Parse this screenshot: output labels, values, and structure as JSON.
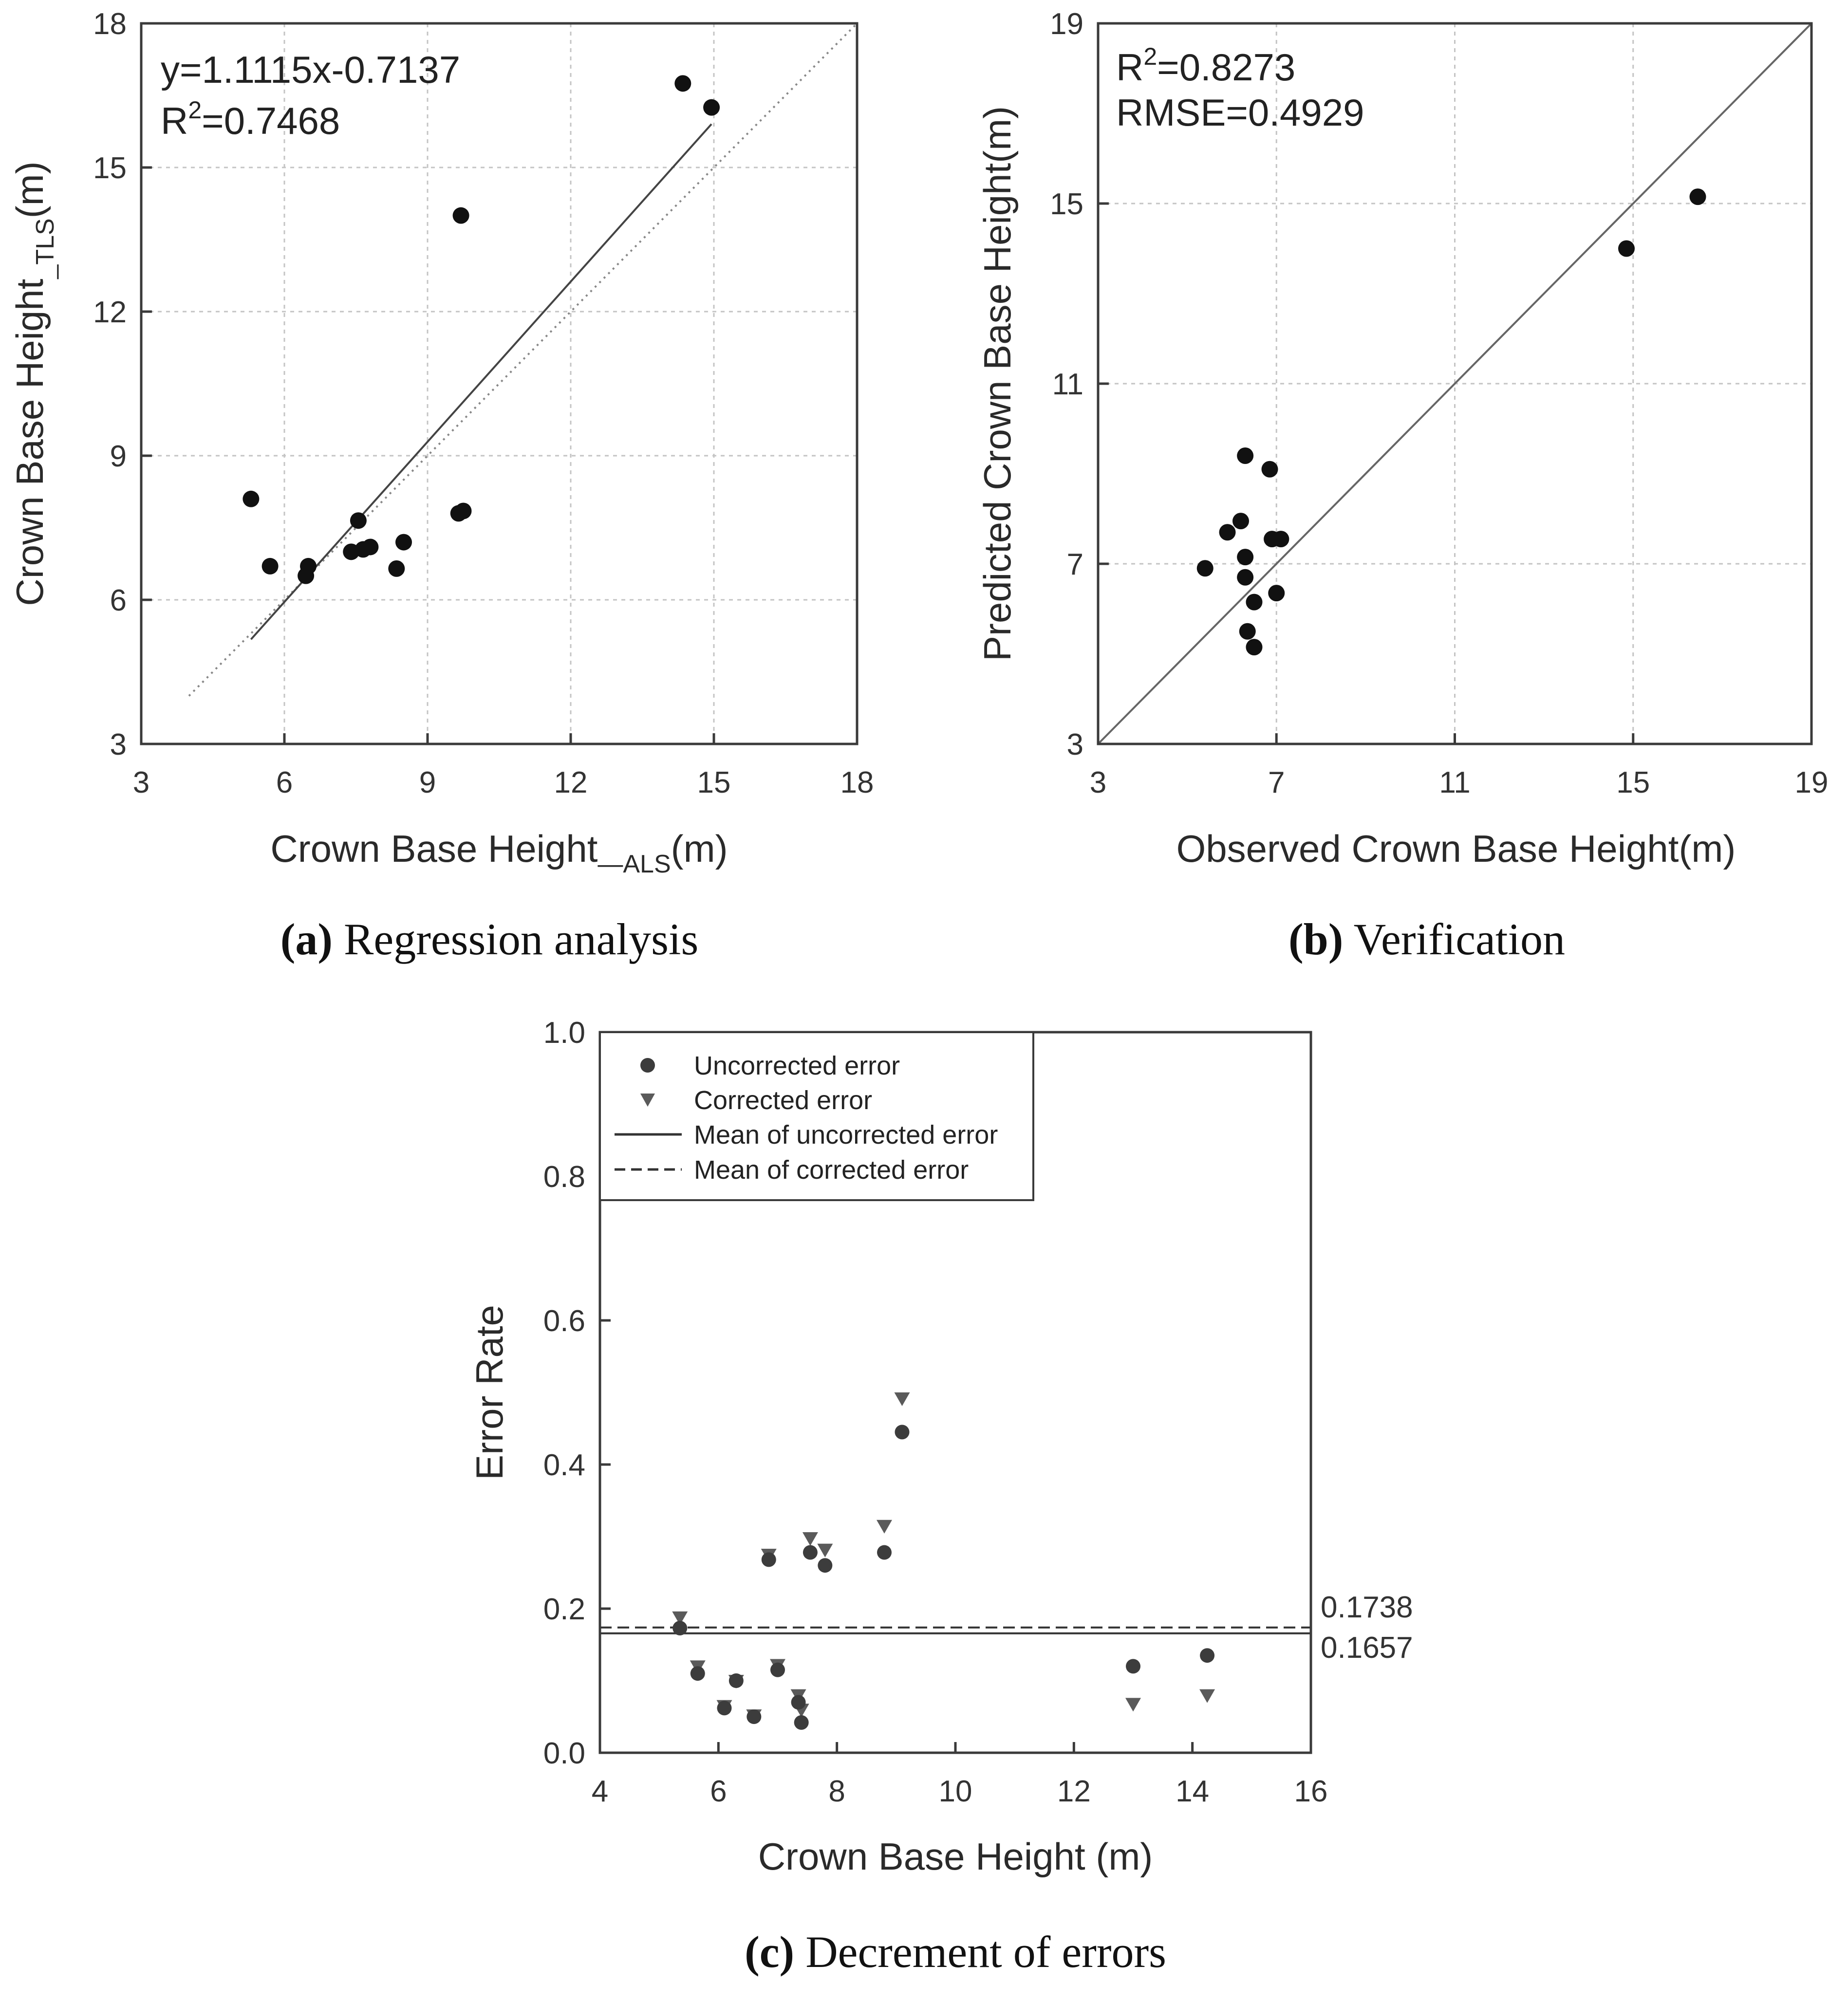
{
  "chart_data": [
    {
      "type": "scatter",
      "panel": "a",
      "caption_label": "(a)",
      "caption_text": " Regression analysis",
      "xlabel_main": "Crown Base Height",
      "xlabel_sub": "—ALS",
      "xlabel_unit": "(m)",
      "ylabel_main": "Crown Base Height",
      "ylabel_sub": "_TLS",
      "ylabel_unit": "(m)",
      "xlim": [
        3,
        18
      ],
      "ylim": [
        3,
        18
      ],
      "xticks": [
        3,
        6,
        9,
        12,
        15,
        18
      ],
      "yticks": [
        3,
        6,
        9,
        12,
        15,
        18
      ],
      "grid": true,
      "annotation_eq": "y=1.1115x-0.7137",
      "annotation_r2_prefix": "R",
      "annotation_r2_sup": "2",
      "annotation_r2_value": "=0.7468",
      "regression": {
        "slope": 1.1115,
        "intercept": -0.7137,
        "x_range": [
          5.3,
          14.95
        ]
      },
      "reference_line": {
        "style": "dotted",
        "x_range": [
          4,
          18
        ],
        "y_range": [
          4,
          18
        ]
      },
      "points": [
        {
          "x": 5.3,
          "y": 8.1
        },
        {
          "x": 5.7,
          "y": 6.7
        },
        {
          "x": 6.45,
          "y": 6.5
        },
        {
          "x": 6.5,
          "y": 6.7
        },
        {
          "x": 7.4,
          "y": 7.0
        },
        {
          "x": 7.55,
          "y": 7.65
        },
        {
          "x": 7.65,
          "y": 7.05
        },
        {
          "x": 7.8,
          "y": 7.1
        },
        {
          "x": 8.35,
          "y": 6.65
        },
        {
          "x": 8.5,
          "y": 7.2
        },
        {
          "x": 9.65,
          "y": 7.8
        },
        {
          "x": 9.7,
          "y": 14.0
        },
        {
          "x": 9.75,
          "y": 7.85
        },
        {
          "x": 14.35,
          "y": 16.75
        },
        {
          "x": 14.95,
          "y": 16.25
        }
      ]
    },
    {
      "type": "scatter",
      "panel": "b",
      "caption_label": "(b)",
      "caption_text": " Verification",
      "xlabel": "Observed Crown Base Height(m)",
      "ylabel": "Predicted Crown Base Height(m)",
      "xlim": [
        3,
        19
      ],
      "ylim": [
        3,
        19
      ],
      "xticks": [
        3,
        7,
        11,
        15,
        19
      ],
      "yticks": [
        3,
        7,
        11,
        15,
        19
      ],
      "grid": true,
      "annotation_r2_prefix": "R",
      "annotation_r2_sup": "2",
      "annotation_r2_value": "=0.8273",
      "annotation_rmse": "RMSE=0.4929",
      "reference_line": {
        "style": "solid",
        "x_range": [
          3,
          19
        ],
        "y_range": [
          3,
          19
        ]
      },
      "points": [
        {
          "x": 5.4,
          "y": 6.9
        },
        {
          "x": 5.9,
          "y": 7.7
        },
        {
          "x": 6.2,
          "y": 7.95
        },
        {
          "x": 6.3,
          "y": 9.4
        },
        {
          "x": 6.3,
          "y": 7.15
        },
        {
          "x": 6.3,
          "y": 6.7
        },
        {
          "x": 6.35,
          "y": 5.5
        },
        {
          "x": 6.5,
          "y": 6.15
        },
        {
          "x": 6.5,
          "y": 5.15
        },
        {
          "x": 6.85,
          "y": 9.1
        },
        {
          "x": 6.9,
          "y": 7.55
        },
        {
          "x": 7.0,
          "y": 6.35
        },
        {
          "x": 7.1,
          "y": 7.55
        },
        {
          "x": 14.85,
          "y": 14.0
        },
        {
          "x": 16.45,
          "y": 15.15
        }
      ]
    },
    {
      "type": "scatter",
      "panel": "c",
      "caption_label": "(c)",
      "caption_text": " Decrement of errors",
      "xlabel": "Crown Base Height (m)",
      "ylabel": "Error Rate",
      "xlim": [
        4,
        16
      ],
      "ylim": [
        0.0,
        1.0
      ],
      "xticks": [
        4,
        6,
        8,
        10,
        12,
        14,
        16
      ],
      "yticks": [
        0.0,
        0.2,
        0.4,
        0.6,
        0.8,
        1.0
      ],
      "ytick_labels": [
        "0.0",
        "0.2",
        "0.4",
        "0.6",
        "0.8",
        "1.0"
      ],
      "grid": false,
      "legend_position": "top-left",
      "series": [
        {
          "name": "Uncorrected error",
          "marker": "circle",
          "points": [
            {
              "x": 5.35,
              "y": 0.173
            },
            {
              "x": 5.65,
              "y": 0.11
            },
            {
              "x": 6.1,
              "y": 0.062
            },
            {
              "x": 6.3,
              "y": 0.1
            },
            {
              "x": 6.6,
              "y": 0.05
            },
            {
              "x": 6.85,
              "y": 0.268
            },
            {
              "x": 7.0,
              "y": 0.115
            },
            {
              "x": 7.35,
              "y": 0.07
            },
            {
              "x": 7.4,
              "y": 0.042
            },
            {
              "x": 7.55,
              "y": 0.278
            },
            {
              "x": 7.8,
              "y": 0.26
            },
            {
              "x": 8.8,
              "y": 0.278
            },
            {
              "x": 9.1,
              "y": 0.445
            },
            {
              "x": 13.0,
              "y": 0.12
            },
            {
              "x": 14.25,
              "y": 0.135
            }
          ]
        },
        {
          "name": "Corrected error",
          "marker": "triangle-down",
          "points": [
            {
              "x": 5.35,
              "y": 0.188
            },
            {
              "x": 5.65,
              "y": 0.12
            },
            {
              "x": 6.1,
              "y": 0.065
            },
            {
              "x": 6.3,
              "y": 0.1
            },
            {
              "x": 6.6,
              "y": 0.052
            },
            {
              "x": 6.85,
              "y": 0.275
            },
            {
              "x": 7.0,
              "y": 0.122
            },
            {
              "x": 7.35,
              "y": 0.08
            },
            {
              "x": 7.4,
              "y": 0.06
            },
            {
              "x": 7.55,
              "y": 0.298
            },
            {
              "x": 7.8,
              "y": 0.282
            },
            {
              "x": 8.8,
              "y": 0.315
            },
            {
              "x": 9.1,
              "y": 0.492
            },
            {
              "x": 13.0,
              "y": 0.068
            },
            {
              "x": 14.25,
              "y": 0.08
            }
          ]
        }
      ],
      "mean_lines": [
        {
          "name": "Mean of uncorrected error",
          "style": "solid",
          "value": 0.1657,
          "label": "0.1657"
        },
        {
          "name": "Mean of corrected error",
          "style": "dashed",
          "value": 0.1738,
          "label": "0.1738"
        }
      ]
    }
  ]
}
